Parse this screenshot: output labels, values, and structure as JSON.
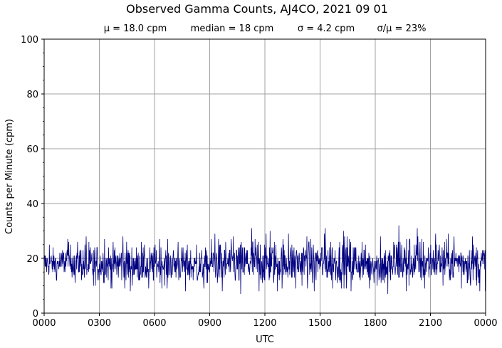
{
  "chart_data": {
    "type": "line",
    "title": "Observed Gamma Counts, AJ4CO, 2021 09 01",
    "subtitle": {
      "mean": "μ = 18.0 cpm",
      "median": "median = 18 cpm",
      "sigma": "σ = 4.2 cpm",
      "ratio": "σ/μ = 23%"
    },
    "xlabel": "UTC",
    "ylabel": "Counts per Minute (cpm)",
    "x_ticks": [
      "0000",
      "0300",
      "0600",
      "0900",
      "1200",
      "1500",
      "1800",
      "2100",
      "0000"
    ],
    "y_ticks": [
      0,
      20,
      40,
      60,
      80,
      100
    ],
    "xlim_hours": [
      0,
      24
    ],
    "ylim": [
      0,
      100
    ],
    "grid": true,
    "line_color": "#000080",
    "series": [
      {
        "x_hours_step": 1,
        "values": [
          18,
          19,
          17,
          18,
          18,
          17,
          18,
          18,
          17,
          18,
          18,
          18,
          18,
          18,
          19,
          18,
          18,
          18,
          17,
          18,
          18,
          19,
          19,
          18,
          18
        ],
        "min_values": [
          12,
          11,
          10,
          9,
          8,
          9,
          9,
          8,
          9,
          8,
          7,
          8,
          8,
          9,
          8,
          9,
          8,
          9,
          7,
          8,
          9,
          10,
          9,
          8,
          10
        ],
        "max_values": [
          25,
          27,
          28,
          27,
          28,
          26,
          27,
          26,
          25,
          29,
          28,
          31,
          30,
          29,
          28,
          31,
          30,
          26,
          28,
          32,
          31,
          29,
          28,
          28,
          27
        ]
      }
    ]
  }
}
